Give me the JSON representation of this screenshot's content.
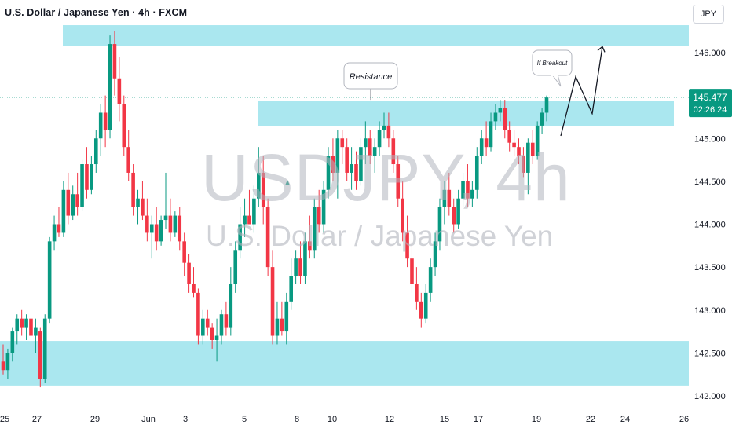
{
  "header": {
    "title": "U.S. Dollar / Japanese Yen · 4h · FXCM",
    "currency": "JPY"
  },
  "watermark": {
    "symbol": "USDJPY, 4h",
    "name": "U.S. Dollar / Japanese Yen"
  },
  "price_tag": {
    "price": "145.477",
    "countdown": "02:26:24"
  },
  "colors": {
    "up": "#089981",
    "down": "#f23645",
    "zone": "#a5e6ee",
    "tag": "#089981"
  },
  "chart_data": {
    "type": "candlestick",
    "ylim": [
      141.9,
      146.4
    ],
    "y_ticks": [
      "146.000",
      "145.500",
      "145.000",
      "144.500",
      "144.000",
      "143.500",
      "143.000",
      "142.500",
      "142.000"
    ],
    "y_tick_values": [
      146.0,
      145.5,
      145.0,
      144.5,
      144.0,
      143.5,
      143.0,
      142.5,
      142.0
    ],
    "x_ticks": [
      "25",
      "27",
      "29",
      "Jun",
      "3",
      "5",
      "8",
      "10",
      "12",
      "15",
      "17",
      "19",
      "22",
      "24",
      "26"
    ],
    "last_price": 145.477,
    "zones": [
      {
        "from": 146.08,
        "to": 146.32
      },
      {
        "from": 145.14,
        "to": 145.44
      },
      {
        "from": 142.12,
        "to": 142.64
      }
    ],
    "annotations": [
      {
        "text": "Resistance",
        "anchor_price": 145.45
      },
      {
        "text": "If Breakout",
        "anchor_price": 145.6
      }
    ],
    "projection": [
      145.03,
      145.72,
      145.29,
      146.07
    ],
    "candles": [
      [
        142.4,
        142.6,
        142.25,
        142.3
      ],
      [
        142.3,
        142.55,
        142.2,
        142.5
      ],
      [
        142.5,
        142.8,
        142.4,
        142.75
      ],
      [
        142.75,
        142.95,
        142.6,
        142.9
      ],
      [
        142.9,
        143.0,
        142.7,
        142.8
      ],
      [
        142.8,
        142.95,
        142.65,
        142.9
      ],
      [
        142.9,
        142.95,
        142.6,
        142.7
      ],
      [
        142.7,
        142.9,
        142.5,
        142.8
      ],
      [
        142.75,
        142.8,
        142.1,
        142.2
      ],
      [
        142.2,
        142.95,
        142.15,
        142.9
      ],
      [
        142.9,
        143.85,
        142.85,
        143.8
      ],
      [
        143.8,
        144.1,
        143.7,
        144.0
      ],
      [
        144.0,
        144.2,
        143.85,
        143.9
      ],
      [
        143.9,
        144.5,
        143.85,
        144.4
      ],
      [
        144.4,
        144.6,
        144.0,
        144.1
      ],
      [
        144.1,
        144.45,
        144.05,
        144.35
      ],
      [
        144.35,
        144.6,
        144.1,
        144.2
      ],
      [
        144.2,
        144.75,
        144.15,
        144.7
      ],
      [
        144.7,
        144.9,
        144.3,
        144.4
      ],
      [
        144.4,
        144.8,
        144.35,
        144.7
      ],
      [
        144.7,
        145.1,
        144.6,
        145.0
      ],
      [
        145.0,
        145.4,
        144.8,
        145.3
      ],
      [
        145.3,
        145.5,
        144.9,
        145.1
      ],
      [
        145.1,
        146.2,
        145.0,
        146.1
      ],
      [
        146.1,
        146.25,
        145.5,
        145.7
      ],
      [
        145.7,
        145.95,
        145.2,
        145.4
      ],
      [
        145.4,
        145.5,
        144.8,
        144.9
      ],
      [
        144.9,
        145.1,
        144.5,
        144.6
      ],
      [
        144.6,
        144.7,
        144.1,
        144.2
      ],
      [
        144.2,
        144.4,
        144.0,
        144.3
      ],
      [
        144.3,
        144.5,
        144.05,
        144.1
      ],
      [
        144.1,
        144.3,
        143.8,
        143.9
      ],
      [
        143.9,
        144.1,
        143.6,
        144.0
      ],
      [
        144.0,
        144.2,
        143.7,
        143.8
      ],
      [
        143.8,
        144.1,
        143.75,
        144.05
      ],
      [
        144.05,
        144.6,
        143.95,
        144.1
      ],
      [
        144.1,
        144.3,
        143.8,
        143.9
      ],
      [
        143.9,
        144.15,
        143.85,
        144.1
      ],
      [
        144.1,
        144.2,
        143.7,
        143.8
      ],
      [
        143.8,
        143.9,
        143.4,
        143.55
      ],
      [
        143.55,
        143.65,
        143.2,
        143.3
      ],
      [
        143.3,
        143.5,
        143.15,
        143.2
      ],
      [
        143.2,
        143.25,
        142.6,
        142.7
      ],
      [
        142.7,
        143.0,
        142.6,
        142.9
      ],
      [
        142.9,
        143.0,
        142.7,
        142.8
      ],
      [
        142.8,
        142.85,
        142.55,
        142.65
      ],
      [
        142.65,
        142.9,
        142.4,
        142.7
      ],
      [
        142.7,
        143.0,
        142.6,
        142.95
      ],
      [
        142.95,
        143.1,
        142.7,
        142.8
      ],
      [
        142.8,
        143.5,
        142.7,
        143.3
      ],
      [
        143.3,
        143.8,
        143.2,
        143.7
      ],
      [
        143.7,
        144.2,
        143.6,
        144.0
      ],
      [
        144.0,
        144.3,
        143.85,
        144.1
      ],
      [
        144.1,
        144.4,
        144.0,
        144.0
      ],
      [
        144.0,
        144.45,
        143.9,
        144.3
      ],
      [
        144.3,
        144.9,
        144.2,
        144.6
      ],
      [
        144.6,
        144.8,
        144.0,
        144.2
      ],
      [
        144.2,
        144.3,
        143.4,
        143.5
      ],
      [
        143.5,
        143.7,
        142.6,
        142.7
      ],
      [
        142.7,
        143.1,
        142.6,
        142.9
      ],
      [
        142.9,
        143.1,
        142.7,
        142.75
      ],
      [
        142.75,
        143.2,
        142.6,
        143.1
      ],
      [
        143.1,
        143.6,
        143.0,
        143.4
      ],
      [
        143.4,
        143.7,
        143.3,
        143.6
      ],
      [
        143.6,
        143.8,
        143.3,
        143.4
      ],
      [
        143.4,
        143.9,
        143.3,
        143.8
      ],
      [
        143.8,
        144.1,
        143.6,
        143.7
      ],
      [
        143.7,
        144.3,
        143.6,
        144.2
      ],
      [
        144.2,
        144.4,
        143.9,
        144.0
      ],
      [
        144.0,
        144.5,
        143.9,
        144.4
      ],
      [
        144.4,
        144.9,
        144.3,
        144.8
      ],
      [
        144.8,
        145.0,
        144.5,
        144.6
      ],
      [
        144.6,
        145.1,
        144.3,
        145.0
      ],
      [
        145.0,
        145.1,
        144.7,
        144.9
      ],
      [
        144.9,
        145.0,
        144.5,
        144.6
      ],
      [
        144.6,
        144.9,
        144.4,
        144.7
      ],
      [
        144.7,
        144.85,
        144.4,
        144.5
      ],
      [
        144.5,
        145.0,
        144.45,
        144.9
      ],
      [
        144.9,
        145.2,
        144.7,
        145.0
      ],
      [
        145.0,
        145.1,
        144.7,
        144.8
      ],
      [
        144.8,
        145.0,
        144.6,
        144.9
      ],
      [
        144.9,
        145.2,
        144.8,
        145.1
      ],
      [
        145.1,
        145.3,
        145.0,
        145.15
      ],
      [
        145.15,
        145.3,
        144.9,
        145.0
      ],
      [
        145.0,
        145.1,
        144.6,
        144.7
      ],
      [
        144.7,
        144.8,
        144.2,
        144.3
      ],
      [
        144.3,
        144.5,
        143.8,
        143.9
      ],
      [
        143.9,
        144.1,
        143.5,
        143.6
      ],
      [
        143.6,
        143.8,
        143.2,
        143.3
      ],
      [
        143.3,
        143.5,
        143.0,
        143.1
      ],
      [
        143.1,
        143.2,
        142.8,
        142.9
      ],
      [
        142.9,
        143.3,
        142.85,
        143.2
      ],
      [
        143.2,
        143.6,
        143.1,
        143.5
      ],
      [
        143.5,
        143.9,
        143.4,
        143.8
      ],
      [
        143.8,
        144.3,
        143.7,
        144.2
      ],
      [
        144.2,
        144.5,
        144.0,
        144.4
      ],
      [
        144.4,
        144.6,
        144.1,
        144.2
      ],
      [
        144.2,
        144.3,
        143.9,
        144.0
      ],
      [
        144.0,
        144.4,
        143.95,
        144.3
      ],
      [
        144.3,
        144.6,
        144.2,
        144.5
      ],
      [
        144.5,
        144.7,
        144.2,
        144.3
      ],
      [
        144.3,
        144.5,
        144.2,
        144.4
      ],
      [
        144.4,
        144.9,
        144.3,
        144.8
      ],
      [
        144.8,
        145.1,
        144.7,
        145.0
      ],
      [
        145.0,
        145.2,
        144.8,
        144.9
      ],
      [
        144.9,
        145.3,
        144.85,
        145.2
      ],
      [
        145.2,
        145.4,
        145.1,
        145.3
      ],
      [
        145.3,
        145.45,
        145.2,
        145.35
      ],
      [
        145.35,
        145.45,
        145.0,
        145.1
      ],
      [
        145.1,
        145.2,
        144.85,
        144.95
      ],
      [
        144.95,
        145.1,
        144.8,
        144.9
      ],
      [
        144.9,
        145.0,
        144.7,
        144.8
      ],
      [
        144.8,
        144.9,
        144.55,
        144.6
      ],
      [
        144.6,
        145.0,
        144.35,
        144.95
      ],
      [
        144.95,
        145.1,
        144.7,
        144.8
      ],
      [
        144.8,
        145.2,
        144.75,
        145.15
      ],
      [
        145.15,
        145.35,
        145.05,
        145.3
      ],
      [
        145.3,
        145.5,
        145.2,
        145.477
      ]
    ]
  }
}
